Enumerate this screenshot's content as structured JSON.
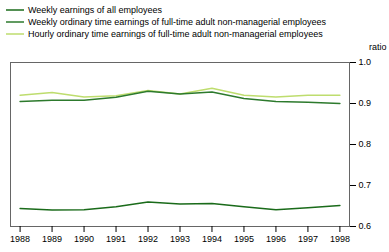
{
  "chart_data": {
    "type": "line",
    "x": [
      1988,
      1989,
      1990,
      1991,
      1992,
      1993,
      1994,
      1995,
      1996,
      1997,
      1998
    ],
    "series": [
      {
        "name": "Weekly earnings of all employees",
        "color": "#1a6b1a",
        "values": [
          0.644,
          0.64,
          0.641,
          0.648,
          0.66,
          0.655,
          0.656,
          0.648,
          0.641,
          0.646,
          0.651
        ]
      },
      {
        "name": "Weekly ordinary time earnings of full-time adult non-managerial employees",
        "color": "#2d7a2d",
        "values": [
          0.905,
          0.908,
          0.908,
          0.915,
          0.93,
          0.923,
          0.928,
          0.912,
          0.905,
          0.903,
          0.9
        ]
      },
      {
        "name": "Hourly ordinary time earnings of full-time adult non-managerial employees",
        "color": "#bedd6e",
        "values": [
          0.92,
          0.927,
          0.916,
          0.919,
          0.932,
          0.923,
          0.937,
          0.92,
          0.916,
          0.92,
          0.92
        ]
      }
    ],
    "y_label": "ratio",
    "xlim": [
      1987.7,
      1998.3
    ],
    "xticks": [
      1988,
      1989,
      1990,
      1991,
      1992,
      1993,
      1994,
      1995,
      1996,
      1997,
      1998
    ],
    "ylim": [
      0.6,
      1.0
    ],
    "yticks": [
      0.6,
      0.7,
      0.8,
      0.9,
      {
        "value": 1.0,
        "label": "1.0"
      }
    ],
    "grid": false,
    "legend": "upper left"
  }
}
